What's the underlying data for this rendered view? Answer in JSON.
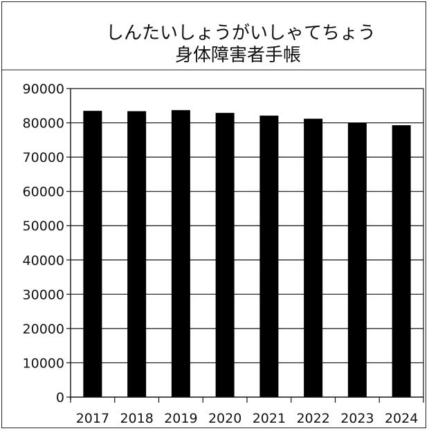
{
  "chart_data": {
    "type": "bar",
    "title": "しんたいしょうがいしゃてちょう",
    "subtitle": "身体障害者手帳",
    "xlabel": "",
    "ylabel": "",
    "categories": [
      "2017",
      "2018",
      "2019",
      "2020",
      "2021",
      "2022",
      "2023",
      "2024"
    ],
    "values": [
      83500,
      83400,
      83700,
      82900,
      82100,
      81200,
      80100,
      79300
    ],
    "ylim": [
      0,
      90000
    ],
    "yticks": [
      0,
      10000,
      20000,
      30000,
      40000,
      50000,
      60000,
      70000,
      80000,
      90000
    ],
    "ytick_labels": [
      "0",
      "10000",
      "20000",
      "30000",
      "40000",
      "50000",
      "60000",
      "70000",
      "80000",
      "90000"
    ],
    "grid": true,
    "legend": "none",
    "bar_color": "#000000"
  }
}
